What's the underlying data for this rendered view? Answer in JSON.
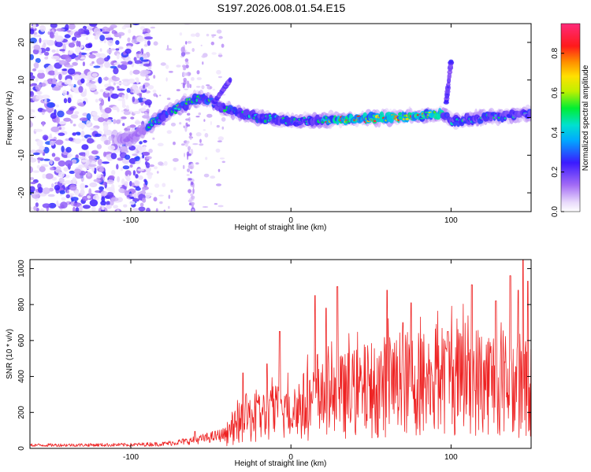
{
  "title": "S197.2026.008.01.54.E15",
  "chart_data": [
    {
      "type": "heatmap",
      "panel": "spectrogram",
      "xlabel": "Height of straight line (km)",
      "ylabel": "Frequency (Hz)",
      "xlim": [
        -163,
        150
      ],
      "ylim": [
        -25,
        25
      ],
      "xticks": [
        -100,
        0,
        100
      ],
      "yticks": [
        -20,
        -10,
        0,
        10,
        20
      ],
      "colorbar": {
        "label": "Normalized spectral amplitude",
        "range": [
          0.0,
          0.95
        ],
        "ticks": [
          0.0,
          0.2,
          0.4,
          0.6,
          0.8
        ]
      },
      "trace_points": [
        {
          "x": -100,
          "f": -5.5
        },
        {
          "x": -88,
          "f": -2
        },
        {
          "x": -78,
          "f": 1
        },
        {
          "x": -68,
          "f": 3
        },
        {
          "x": -60,
          "f": 5
        },
        {
          "x": -52,
          "f": 5
        },
        {
          "x": -40,
          "f": 2
        },
        {
          "x": -20,
          "f": 0
        },
        {
          "x": 0,
          "f": -1
        },
        {
          "x": 30,
          "f": -0.5
        },
        {
          "x": 60,
          "f": 0
        },
        {
          "x": 80,
          "f": 0.5
        },
        {
          "x": 95,
          "f": 1
        },
        {
          "x": 100,
          "f": -1
        },
        {
          "x": 120,
          "f": 0
        },
        {
          "x": 150,
          "f": 1
        }
      ]
    },
    {
      "type": "line",
      "panel": "snr",
      "xlabel": "Height of straight line (km)",
      "ylabel": "SNR (10 * v/v)",
      "xlim": [
        -163,
        150
      ],
      "ylim": [
        0,
        1050
      ],
      "xticks": [
        -100,
        0,
        100
      ],
      "yticks": [
        0,
        200,
        400,
        600,
        800,
        1000
      ],
      "series": [
        {
          "name": "SNR",
          "color": "#ee2222",
          "envelope": [
            {
              "x": -163,
              "y": 18
            },
            {
              "x": -100,
              "y": 20
            },
            {
              "x": -80,
              "y": 25
            },
            {
              "x": -60,
              "y": 45
            },
            {
              "x": -40,
              "y": 80
            },
            {
              "x": -30,
              "y": 180
            },
            {
              "x": -20,
              "y": 200
            },
            {
              "x": 0,
              "y": 250
            },
            {
              "x": 20,
              "y": 300
            },
            {
              "x": 40,
              "y": 350
            },
            {
              "x": 60,
              "y": 400
            },
            {
              "x": 80,
              "y": 420
            },
            {
              "x": 100,
              "y": 440
            },
            {
              "x": 130,
              "y": 430
            },
            {
              "x": 150,
              "y": 380
            }
          ],
          "peaks": [
            {
              "x": -60,
              "y": 95
            },
            {
              "x": -30,
              "y": 420
            },
            {
              "x": -15,
              "y": 470
            },
            {
              "x": -7,
              "y": 650
            },
            {
              "x": 15,
              "y": 850
            },
            {
              "x": 22,
              "y": 780
            },
            {
              "x": 29,
              "y": 900
            },
            {
              "x": 60,
              "y": 880
            },
            {
              "x": 70,
              "y": 700
            },
            {
              "x": 75,
              "y": 810
            },
            {
              "x": 98,
              "y": 650
            },
            {
              "x": 113,
              "y": 910
            },
            {
              "x": 128,
              "y": 820
            },
            {
              "x": 137,
              "y": 960
            },
            {
              "x": 142,
              "y": 880
            },
            {
              "x": 145,
              "y": 1050
            },
            {
              "x": 148,
              "y": 930
            }
          ]
        }
      ]
    }
  ]
}
